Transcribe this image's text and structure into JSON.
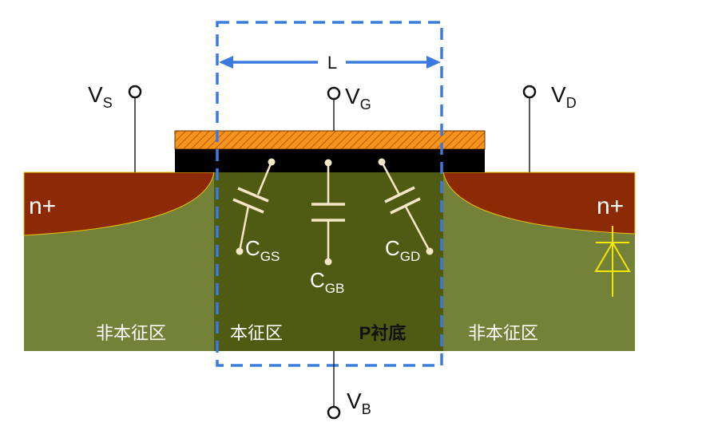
{
  "terminals": {
    "source": {
      "main": "V",
      "sub": "S"
    },
    "gate": {
      "main": "V",
      "sub": "G"
    },
    "drain": {
      "main": "V",
      "sub": "D"
    },
    "body": {
      "main": "V",
      "sub": "B"
    }
  },
  "length_label": "L",
  "regions": {
    "n_plus_left": "n+",
    "n_plus_right": "n+",
    "non_intrinsic_left": "非本征区",
    "intrinsic": "本征区",
    "p_substrate": "P衬底",
    "non_intrinsic_right": "非本征区"
  },
  "capacitors": {
    "gs": {
      "main": "C",
      "sub": "GS"
    },
    "gb": {
      "main": "C",
      "sub": "GB"
    },
    "gd": {
      "main": "C",
      "sub": "GD"
    }
  },
  "colors": {
    "substrate_outer": "#738238",
    "substrate_inner": "#4f5a13",
    "n_plus": "#8b2a05",
    "gate_metal": "#f6931e",
    "gate_oxide": "#000000",
    "dashed_box": "#3b7ae0",
    "capacitor": "#f5e6c8",
    "diode": "#f2e600",
    "text_light": "#ffffff",
    "text_dark": "#111111"
  }
}
